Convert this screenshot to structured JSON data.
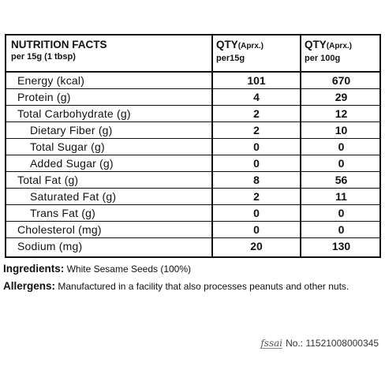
{
  "header": {
    "title": "NUTRITION FACTS",
    "serving": "per 15g (1 tbsp)",
    "col1_qty": "QTY",
    "col1_aprx": "(Aprx.)",
    "col1_unit": "per15g",
    "col2_qty": "QTY",
    "col2_aprx": "(Aprx.)",
    "col2_unit": "per 100g"
  },
  "rows": [
    {
      "name": "Energy (kcal)",
      "indent": 0,
      "per15g": "101",
      "per100g": "670"
    },
    {
      "name": "Protein (g)",
      "indent": 0,
      "per15g": "4",
      "per100g": "29"
    },
    {
      "name": "Total Carbohydrate (g)",
      "indent": 0,
      "per15g": "2",
      "per100g": "12"
    },
    {
      "name": "Dietary Fiber (g)",
      "indent": 1,
      "per15g": "2",
      "per100g": "10"
    },
    {
      "name": "Total Sugar (g)",
      "indent": 1,
      "per15g": "0",
      "per100g": "0"
    },
    {
      "name": "Added Sugar (g)",
      "indent": 1,
      "per15g": "0",
      "per100g": "0"
    },
    {
      "name": "Total Fat (g)",
      "indent": 0,
      "per15g": "8",
      "per100g": "56"
    },
    {
      "name": "Saturated Fat (g)",
      "indent": 1,
      "per15g": "2",
      "per100g": "11"
    },
    {
      "name": "Trans Fat (g)",
      "indent": 1,
      "per15g": "0",
      "per100g": "0"
    },
    {
      "name": "Cholesterol (mg)",
      "indent": 0,
      "per15g": "0",
      "per100g": "0"
    },
    {
      "name": "Sodium (mg)",
      "indent": 0,
      "per15g": "20",
      "per100g": "130"
    }
  ],
  "ingredients": {
    "label": "Ingredients:",
    "text": "White Sesame Seeds (100%)"
  },
  "allergens": {
    "label": "Allergens:",
    "text": "Manufactured in a facility that also processes peanuts and other nuts."
  },
  "license": {
    "logo": "fssai",
    "number": "No.: 11521008000345"
  }
}
